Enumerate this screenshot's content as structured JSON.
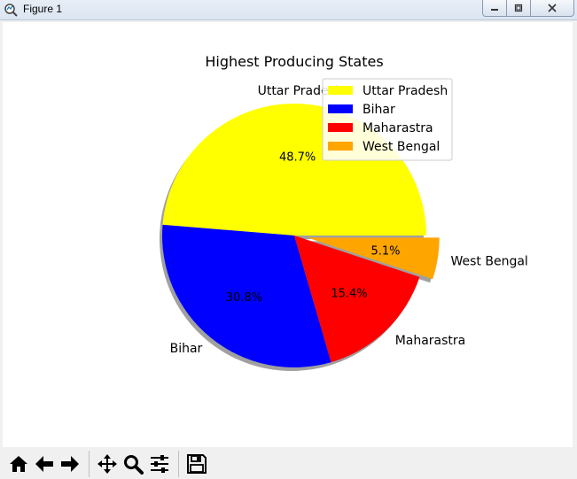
{
  "window": {
    "title": "Figure 1"
  },
  "toolbar": {
    "buttons": [
      {
        "name": "home-icon"
      },
      {
        "name": "back-arrow-icon"
      },
      {
        "name": "forward-arrow-icon"
      },
      {
        "name": "pan-icon"
      },
      {
        "name": "zoom-icon"
      },
      {
        "name": "configure-subplots-icon"
      },
      {
        "name": "save-icon"
      }
    ]
  },
  "chart_data": {
    "type": "pie",
    "title": "Highest Producing States",
    "categories": [
      "Uttar Pradesh",
      "Bihar",
      "Maharastra",
      "West Bengal"
    ],
    "values": [
      48.7,
      30.8,
      15.4,
      5.1
    ],
    "percent_labels": [
      "48.7%",
      "30.8%",
      "15.4%",
      "5.1%"
    ],
    "colors": [
      "#ffff00",
      "#0000ff",
      "#ff0000",
      "#ffa500"
    ],
    "explode": [
      0,
      0,
      0,
      0.1
    ],
    "shadow": true,
    "start_angle_deg": 0,
    "legend": {
      "placement": "top-right",
      "entries": [
        "Uttar Pradesh",
        "Bihar",
        "Maharastra",
        "West Bengal"
      ]
    }
  }
}
